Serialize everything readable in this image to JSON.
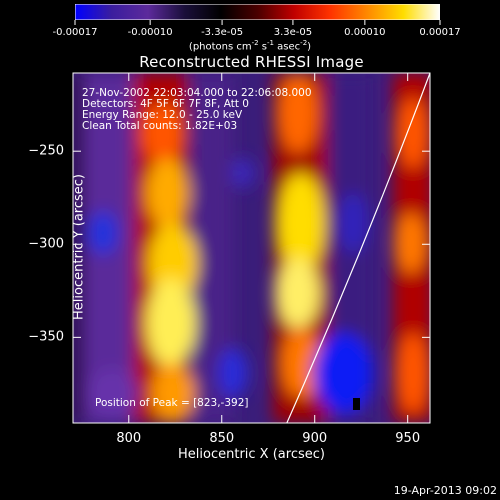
{
  "colorbar": {
    "ticks": [
      {
        "label": "-0.00017",
        "value": -0.00017
      },
      {
        "label": "-0.00010",
        "value": -0.0001
      },
      {
        "label": "-3.3e-05",
        "value": -3.3e-05
      },
      {
        "label": "3.3e-05",
        "value": 3.3e-05
      },
      {
        "label": "0.00010",
        "value": 0.0001
      },
      {
        "label": "0.00017",
        "value": 0.00017
      }
    ],
    "unit_prefix": "(photons cm",
    "unit_exp1": "-2",
    "unit_mid": " s",
    "unit_exp2": "-1",
    "unit_mid2": " asec",
    "unit_exp3": "-2",
    "unit_suffix": ")",
    "range": [
      -0.00017,
      0.00017
    ],
    "colors": [
      "#0000ff",
      "#3a1d9e",
      "#5c2a9c",
      "#1a0f3a",
      "#000000",
      "#4a0000",
      "#c00000",
      "#ff3300",
      "#ff8800",
      "#ffdd00",
      "#ffffff"
    ]
  },
  "info": {
    "line1": "27-Nov-2002 22:03:04.000 to 22:06:08.000",
    "line2": "Detectors: 4F 5F 6F 7F 8F, Att 0",
    "line3": "Energy Range: 12.0 - 25.0 keV",
    "line4": "Clean     Total counts: 1.82E+03",
    "position": "Position of Peak = [823,-392]"
  },
  "timestamp": "19-Apr-2013 09:02",
  "chart_data": {
    "type": "heatmap",
    "title": "Reconstructed RHESSI Image",
    "xlabel": "Heliocentric X (arcsec)",
    "ylabel": "Heliocentric Y (arcsec)",
    "xlim": [
      770,
      962
    ],
    "ylim": [
      -396,
      -208
    ],
    "xticks": [
      800,
      850,
      900,
      950
    ],
    "yticks": [
      -250,
      -300,
      -350
    ],
    "peak": [
      823,
      -392
    ],
    "limb_line": [
      [
        885,
        -396
      ],
      [
        962,
        -208
      ]
    ]
  }
}
